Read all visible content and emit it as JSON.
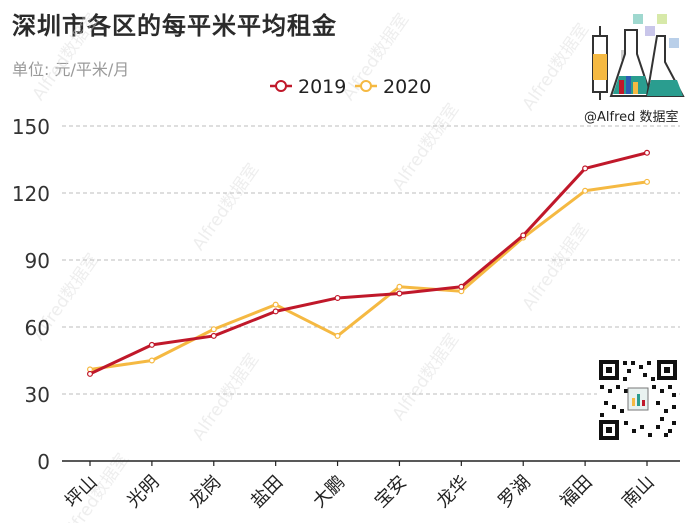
{
  "title": "深圳市各区的每平米平均租金",
  "subtitle": "单位: 元/平米/月",
  "brand": "@Alfred 数据室",
  "watermark": "Alfred数据室",
  "colors": {
    "s2019": "#c0182a",
    "s2020": "#f5b942",
    "grid": "#bdbdbd",
    "text": "#222222"
  },
  "chart_data": {
    "type": "line",
    "categories": [
      "坪山",
      "光明",
      "龙岗",
      "盐田",
      "大鹏",
      "宝安",
      "龙华",
      "罗湖",
      "福田",
      "南山"
    ],
    "series": [
      {
        "name": "2019",
        "values": [
          39,
          52,
          56,
          67,
          73,
          75,
          78,
          101,
          131,
          138
        ]
      },
      {
        "name": "2020",
        "values": [
          41,
          45,
          59,
          70,
          56,
          78,
          76,
          100,
          121,
          125
        ]
      }
    ],
    "yticks": [
      0,
      30,
      60,
      90,
      120,
      150
    ],
    "ylim": [
      0,
      150
    ],
    "grid": true,
    "legend": "top-center"
  }
}
